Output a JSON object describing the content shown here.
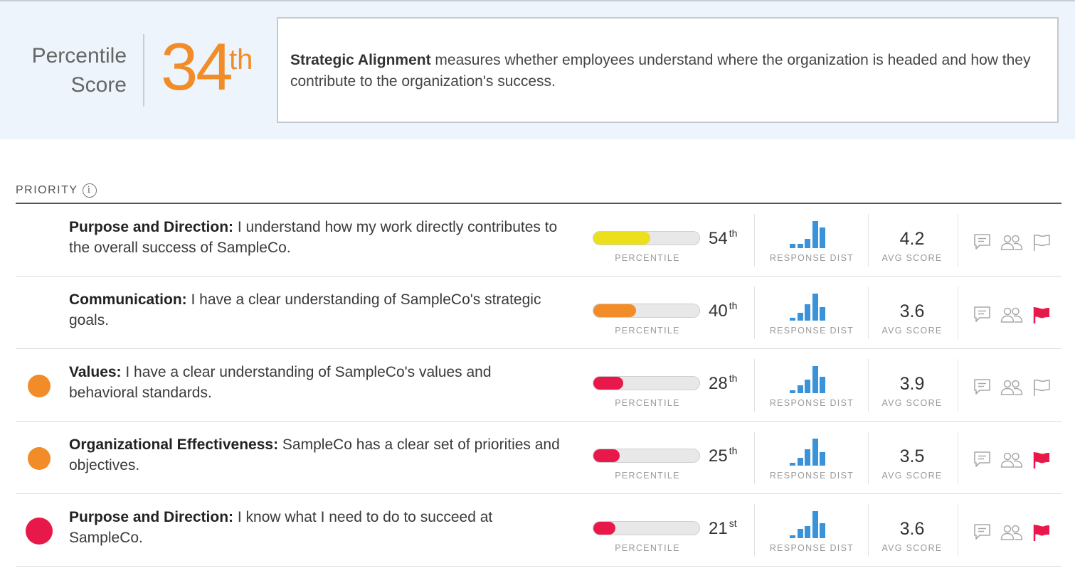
{
  "header": {
    "score_label_line1": "Percentile",
    "score_label_line2": "Score",
    "score_value": "34",
    "score_suffix": "th",
    "score_color": "#f28c28",
    "description_bold": "Strategic Alignment",
    "description_text": " measures whether employees understand where the organization is headed and how they contribute to the organization's success."
  },
  "table": {
    "priority_heading": "PRIORITY",
    "info_icon": "i",
    "percentile_caption": "PERCENTILE",
    "dist_caption": "RESPONSE DIST",
    "avg_caption": "AVG SCORE",
    "rows": [
      {
        "priority": "none",
        "priority_color": "",
        "category": "Purpose and Direction:",
        "question": " I understand how my work directly contributes to the overall success of SampleCo.",
        "percentile": "54",
        "percentile_suffix": "th",
        "percentile_fraction": 0.54,
        "bar_color": "#ecdf1c",
        "distribution": [
          0.15,
          0.15,
          0.35,
          1.0,
          0.75
        ],
        "avg_score": "4.2",
        "flagged": false
      },
      {
        "priority": "none",
        "priority_color": "",
        "category": "Communication:",
        "question": " I have a clear understanding of SampleCo's strategic goals.",
        "percentile": "40",
        "percentile_suffix": "th",
        "percentile_fraction": 0.4,
        "bar_color": "#f28c28",
        "distribution": [
          0.1,
          0.3,
          0.6,
          1.0,
          0.5
        ],
        "avg_score": "3.6",
        "flagged": true
      },
      {
        "priority": "medium",
        "priority_color": "#f28c28",
        "category": "Values:",
        "question": " I have a clear understanding of SampleCo's values and behavioral standards.",
        "percentile": "28",
        "percentile_suffix": "th",
        "percentile_fraction": 0.28,
        "bar_color": "#e8194a",
        "distribution": [
          0.1,
          0.3,
          0.5,
          1.0,
          0.6
        ],
        "avg_score": "3.9",
        "flagged": false
      },
      {
        "priority": "medium",
        "priority_color": "#f28c28",
        "category": "Organizational Effectiveness:",
        "question": " SampleCo has a clear set of priorities and objectives.",
        "percentile": "25",
        "percentile_suffix": "th",
        "percentile_fraction": 0.25,
        "bar_color": "#e8194a",
        "distribution": [
          0.1,
          0.3,
          0.6,
          1.0,
          0.5
        ],
        "avg_score": "3.5",
        "flagged": true
      },
      {
        "priority": "high",
        "priority_color": "#e8194a",
        "category": "Purpose and Direction:",
        "question": " I know what I need to do to succeed at SampleCo.",
        "percentile": "21",
        "percentile_suffix": "st",
        "percentile_fraction": 0.21,
        "bar_color": "#e8194a",
        "distribution": [
          0.1,
          0.35,
          0.45,
          1.0,
          0.55
        ],
        "avg_score": "3.6",
        "flagged": true
      }
    ]
  },
  "colors": {
    "dist_bar": "#3a92d8",
    "flag_active": "#e8194a",
    "icon_gray": "#a8a8a8"
  },
  "icons": {
    "comment": "comment-icon",
    "people": "people-icon",
    "flag": "flag-icon"
  }
}
